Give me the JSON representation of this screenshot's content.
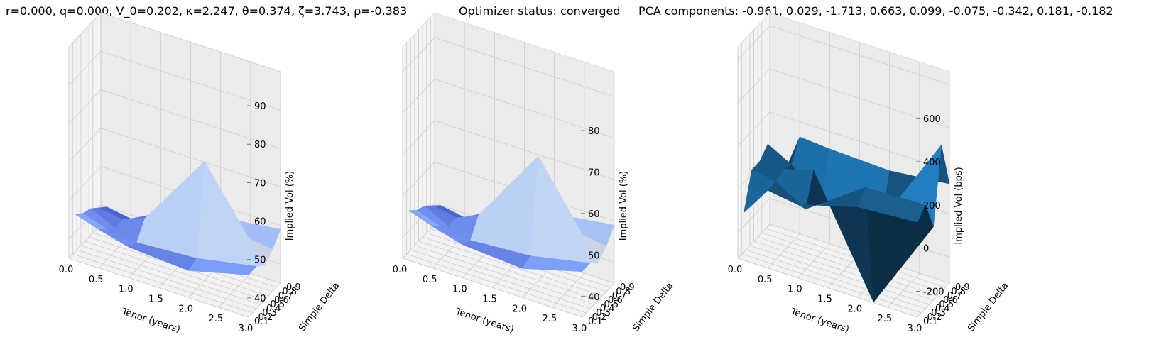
{
  "chart_data": [
    {
      "type": "surface",
      "title": "r=0.000, q=0.000, V_0=0.202, κ=2.247, θ=0.374, ζ=3.743, ρ=-0.383",
      "xlabel": "Tenor (years)",
      "ylabel": "Simple Delta",
      "zlabel": "Implied Vol (%)",
      "x_ticks": [
        "0.0",
        "0.5",
        "1.0",
        "1.5",
        "2.0",
        "2.5",
        "3.0"
      ],
      "y_ticks": [
        "0.1",
        "0.2",
        "0.3",
        "0.4",
        "0.5",
        "0.6",
        "0.7",
        "0.8",
        "0.9"
      ],
      "z_ticks": [
        "40",
        "50",
        "60",
        "70",
        "80",
        "90"
      ],
      "xlim": [
        0,
        3
      ],
      "ylim": [
        0.1,
        0.9
      ],
      "zlim": [
        35,
        90
      ],
      "colormap": "coolwarm",
      "grid": true,
      "x": [
        0.1,
        0.5,
        1.0,
        2.0,
        3.0
      ],
      "y": [
        0.1,
        0.3,
        0.5,
        0.7,
        0.9
      ],
      "z": [
        [
          47,
          45,
          43,
          42,
          46
        ],
        [
          45,
          43,
          42,
          43,
          46
        ],
        [
          44,
          41,
          46,
          66,
          44
        ],
        [
          42,
          41,
          44,
          48,
          46
        ],
        [
          40,
          39,
          43,
          47,
          49
        ]
      ]
    },
    {
      "type": "surface",
      "title": "Optimizer status: converged",
      "xlabel": "Tenor (years)",
      "ylabel": "Simple Delta",
      "zlabel": "Implied Vol (%)",
      "x_ticks": [
        "0.0",
        "0.5",
        "1.0",
        "1.5",
        "2.0",
        "2.5",
        "3.0"
      ],
      "y_ticks": [
        "0.1",
        "0.2",
        "0.3",
        "0.4",
        "0.5",
        "0.6",
        "0.7",
        "0.8",
        "0.9"
      ],
      "z_ticks": [
        "40",
        "50",
        "60",
        "70",
        "80"
      ],
      "xlim": [
        0,
        3
      ],
      "ylim": [
        0.1,
        0.9
      ],
      "zlim": [
        35,
        86
      ],
      "colormap": "coolwarm",
      "grid": true,
      "x": [
        0.1,
        0.5,
        1.0,
        2.0,
        3.0
      ],
      "y": [
        0.1,
        0.3,
        0.5,
        0.7,
        0.9
      ],
      "z": [
        [
          47,
          45,
          43,
          42,
          46
        ],
        [
          45,
          43,
          42,
          43,
          46
        ],
        [
          44,
          41,
          46,
          65,
          44
        ],
        [
          42,
          41,
          44,
          48,
          46
        ],
        [
          40,
          39,
          43,
          47,
          49
        ]
      ]
    },
    {
      "type": "surface",
      "title": "PCA components: -0.961, 0.029, -1.713, 0.663, 0.099, -0.075, -0.342, 0.181, -0.182",
      "xlabel": "Tenor (years)",
      "ylabel": "Simple Delta",
      "zlabel": "Implied Vol (bps)",
      "x_ticks": [
        "0.0",
        "0.5",
        "1.0",
        "1.5",
        "2.0",
        "2.5",
        "3.0"
      ],
      "y_ticks": [
        "0.1",
        "0.2",
        "0.3",
        "0.4",
        "0.5",
        "0.6",
        "0.7",
        "0.8",
        "0.9"
      ],
      "z_ticks": [
        "-200",
        "0",
        "200",
        "400",
        "600"
      ],
      "xlim": [
        0,
        3
      ],
      "ylim": [
        0.1,
        0.9
      ],
      "zlim": [
        -320,
        660
      ],
      "colormap": "Blues_shaded",
      "grid": true,
      "x": [
        0.1,
        0.5,
        1.0,
        2.0,
        3.0
      ],
      "y": [
        0.1,
        0.3,
        0.5,
        0.7,
        0.9
      ],
      "z": [
        [
          -100,
          40,
          20,
          100,
          120
        ],
        [
          60,
          40,
          -40,
          150,
          160
        ],
        [
          60,
          60,
          100,
          -420,
          20
        ],
        [
          100,
          40,
          -80,
          -80,
          360
        ],
        [
          -160,
          130,
          120,
          110,
          140
        ]
      ]
    }
  ]
}
